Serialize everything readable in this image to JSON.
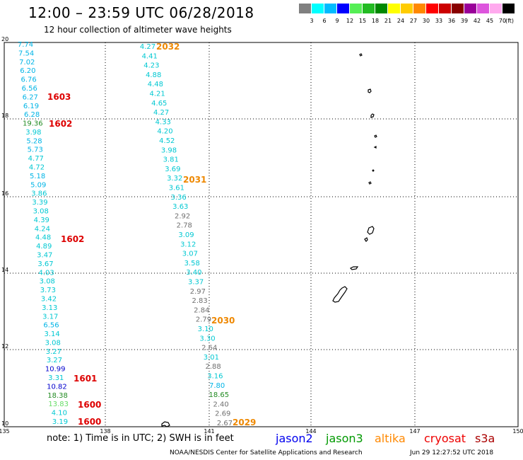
{
  "header": {
    "title": "12:00 – 23:59 UTC 06/28/2018",
    "subtitle": "12 hour collection of altimeter wave heights"
  },
  "legend": {
    "unit": "(ft)",
    "bins": [
      {
        "label": "3",
        "color": "#808080"
      },
      {
        "label": "6",
        "color": "#00ffff"
      },
      {
        "label": "9",
        "color": "#00bbff"
      },
      {
        "label": "12",
        "color": "#0000ff"
      },
      {
        "label": "15",
        "color": "#55ee55"
      },
      {
        "label": "18",
        "color": "#22bb22"
      },
      {
        "label": "21",
        "color": "#008800"
      },
      {
        "label": "24",
        "color": "#ffff00"
      },
      {
        "label": "27",
        "color": "#ffcc00"
      },
      {
        "label": "30",
        "color": "#ff8800"
      },
      {
        "label": "33",
        "color": "#ff0000"
      },
      {
        "label": "36",
        "color": "#cc0000"
      },
      {
        "label": "39",
        "color": "#880000"
      },
      {
        "label": "42",
        "color": "#990099"
      },
      {
        "label": "45",
        "color": "#dd55dd"
      },
      {
        "label": "70",
        "color": "#ffaaee"
      },
      {
        "label": "",
        "color": "#000000"
      }
    ]
  },
  "axes": {
    "lon_labels": [
      "135",
      "138",
      "141",
      "144",
      "147",
      "150"
    ],
    "lat_labels": [
      "20",
      "18",
      "16",
      "14",
      "12",
      "10"
    ]
  },
  "tracks": [
    {
      "values": [
        {
          "v": "7.74",
          "c": "#00b4e6"
        },
        {
          "v": "7.54",
          "c": "#00b4e6"
        },
        {
          "v": "7.02",
          "c": "#00b4e6"
        },
        {
          "v": "6.20",
          "c": "#00b4e6"
        },
        {
          "v": "6.76",
          "c": "#00b4e6"
        },
        {
          "v": "6.56",
          "c": "#00b4e6"
        },
        {
          "v": "6.27",
          "c": "#00b4e6"
        },
        {
          "v": "6.19",
          "c": "#00b4e6"
        },
        {
          "v": "6.28",
          "c": "#00b4e6"
        },
        {
          "v": "19.36",
          "c": "#228b22"
        },
        {
          "v": "3.98",
          "c": "#00c8d2"
        },
        {
          "v": "5.28",
          "c": "#00b4e6"
        },
        {
          "v": "5.73",
          "c": "#00b4e6"
        },
        {
          "v": "4.77",
          "c": "#00c8d2"
        },
        {
          "v": "4.72",
          "c": "#00c8d2"
        },
        {
          "v": "5.18",
          "c": "#00b4e6"
        },
        {
          "v": "5.09",
          "c": "#00b4e6"
        },
        {
          "v": "3.86",
          "c": "#00c8d2"
        },
        {
          "v": "3.39",
          "c": "#00c8d2"
        },
        {
          "v": "3.08",
          "c": "#00c8d2"
        },
        {
          "v": "4.39",
          "c": "#00c8d2"
        },
        {
          "v": "4.24",
          "c": "#00c8d2"
        },
        {
          "v": "4.48",
          "c": "#00c8d2"
        },
        {
          "v": "4.89",
          "c": "#00c8d2"
        },
        {
          "v": "3.47",
          "c": "#00c8d2"
        },
        {
          "v": "3.67",
          "c": "#00c8d2"
        },
        {
          "v": "4.03",
          "c": "#00c8d2"
        },
        {
          "v": "3.08",
          "c": "#00c8d2"
        },
        {
          "v": "3.73",
          "c": "#00c8d2"
        },
        {
          "v": "3.42",
          "c": "#00c8d2"
        },
        {
          "v": "3.13",
          "c": "#00c8d2"
        },
        {
          "v": "3.17",
          "c": "#00c8d2"
        },
        {
          "v": "6.56",
          "c": "#00b4e6"
        },
        {
          "v": "3.14",
          "c": "#00c8d2"
        },
        {
          "v": "3.08",
          "c": "#00c8d2"
        },
        {
          "v": "3.27",
          "c": "#00c8d2"
        },
        {
          "v": "3.27",
          "c": "#00c8d2"
        },
        {
          "v": "10.99",
          "c": "#0000cd"
        },
        {
          "v": "3.31",
          "c": "#00c8d2"
        },
        {
          "v": "10.82",
          "c": "#0000cd"
        },
        {
          "v": "18.38",
          "c": "#228b22"
        },
        {
          "v": "13.83",
          "c": "#66dd66"
        },
        {
          "v": "4.10",
          "c": "#00c8d2"
        },
        {
          "v": "3.19",
          "c": "#00c8d2"
        }
      ]
    },
    {
      "values": [
        {
          "v": "4.27",
          "c": "#00c8d2"
        },
        {
          "v": "4.41",
          "c": "#00c8d2"
        },
        {
          "v": "4.23",
          "c": "#00c8d2"
        },
        {
          "v": "4.88",
          "c": "#00c8d2"
        },
        {
          "v": "4.48",
          "c": "#00c8d2"
        },
        {
          "v": "4.21",
          "c": "#00c8d2"
        },
        {
          "v": "4.65",
          "c": "#00c8d2"
        },
        {
          "v": "4.27",
          "c": "#00c8d2"
        },
        {
          "v": "4.33",
          "c": "#00c8d2"
        },
        {
          "v": "4.20",
          "c": "#00c8d2"
        },
        {
          "v": "4.52",
          "c": "#00c8d2"
        },
        {
          "v": "3.98",
          "c": "#00c8d2"
        },
        {
          "v": "3.81",
          "c": "#00c8d2"
        },
        {
          "v": "3.69",
          "c": "#00c8d2"
        },
        {
          "v": "3.32",
          "c": "#00c8d2"
        },
        {
          "v": "3.61",
          "c": "#00c8d2"
        },
        {
          "v": "3.36",
          "c": "#00c8d2"
        },
        {
          "v": "3.63",
          "c": "#00c8d2"
        },
        {
          "v": "2.92",
          "c": "#707070"
        },
        {
          "v": "2.78",
          "c": "#707070"
        },
        {
          "v": "3.09",
          "c": "#00c8d2"
        },
        {
          "v": "3.12",
          "c": "#00c8d2"
        },
        {
          "v": "3.07",
          "c": "#00c8d2"
        },
        {
          "v": "3.58",
          "c": "#00c8d2"
        },
        {
          "v": "3.40",
          "c": "#00c8d2"
        },
        {
          "v": "3.37",
          "c": "#00c8d2"
        },
        {
          "v": "2.97",
          "c": "#707070"
        },
        {
          "v": "2.83",
          "c": "#707070"
        },
        {
          "v": "2.84",
          "c": "#707070"
        },
        {
          "v": "2.79",
          "c": "#707070"
        },
        {
          "v": "3.10",
          "c": "#00c8d2"
        },
        {
          "v": "3.30",
          "c": "#00c8d2"
        },
        {
          "v": "2.64",
          "c": "#707070"
        },
        {
          "v": "3.01",
          "c": "#00c8d2"
        },
        {
          "v": "2.88",
          "c": "#707070"
        },
        {
          "v": "3.16",
          "c": "#00c8d2"
        },
        {
          "v": "7.80",
          "c": "#00b4e6"
        },
        {
          "v": "18.65",
          "c": "#228b22"
        },
        {
          "v": "2.40",
          "c": "#707070"
        },
        {
          "v": "2.69",
          "c": "#707070"
        },
        {
          "v": "2.67",
          "c": "#707070"
        }
      ]
    }
  ],
  "passes": [
    {
      "time": "1603",
      "c": "#dd0000"
    },
    {
      "time": "1602",
      "c": "#dd0000"
    },
    {
      "time": "1602",
      "c": "#dd0000"
    },
    {
      "time": "1601",
      "c": "#dd0000"
    },
    {
      "time": "1600",
      "c": "#dd0000"
    },
    {
      "time": "1600",
      "c": "#dd0000"
    },
    {
      "time": "2032",
      "c": "#ee8800"
    },
    {
      "time": "2031",
      "c": "#ee8800"
    },
    {
      "time": "2030",
      "c": "#ee8800"
    },
    {
      "time": "2029",
      "c": "#ee8800"
    }
  ],
  "footer": {
    "note": "note:  1) Time is in UTC;  2) SWH is in feet",
    "satellites": [
      {
        "name": "jason2",
        "color": "#0000ee"
      },
      {
        "name": "jason3",
        "color": "#009900"
      },
      {
        "name": "altika",
        "color": "#ff8800"
      },
      {
        "name": "cryosat",
        "color": "#ee0000"
      },
      {
        "name": "s3a",
        "color": "#aa0000"
      }
    ],
    "credit": "NOAA/NESDIS Center for Satellite Applications and Research",
    "timestamp": "Jun 29 12:27:52 UTC 2018"
  }
}
